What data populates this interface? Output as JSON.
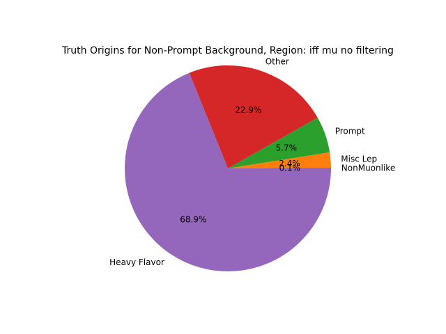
{
  "chart_data": {
    "type": "pie",
    "title": "Truth Origins for Non-Prompt Background, Region: iff mu no filtering",
    "slices": [
      {
        "label": "NonMuonlike",
        "pct_label": "0.1%",
        "value": 0.1,
        "color": "#1f77b4"
      },
      {
        "label": "Misc Lep",
        "pct_label": "2.4%",
        "value": 2.4,
        "color": "#ff7f0e"
      },
      {
        "label": "Prompt",
        "pct_label": "5.7%",
        "value": 5.7,
        "color": "#2ca02c"
      },
      {
        "label": "Other",
        "pct_label": "22.9%",
        "value": 22.9,
        "color": "#d62728"
      },
      {
        "label": "Heavy Flavor",
        "pct_label": "68.9%",
        "value": 68.9,
        "color": "#9467bd"
      }
    ],
    "start_angle_deg": 0,
    "direction": "counterclockwise"
  }
}
